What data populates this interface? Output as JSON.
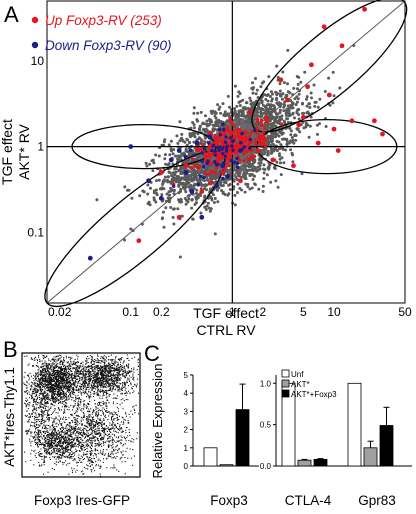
{
  "panel_letters": {
    "a": "A",
    "b": "B",
    "c": "C"
  },
  "colors": {
    "up": "#e8141c",
    "down": "#1a1e8c",
    "background_points": "#5a5a5a",
    "unf_bar": "#ffffff",
    "akt_bar": "#a0a0a0",
    "akt_foxp3_bar": "#000000"
  },
  "chart_data": [
    {
      "type": "scatter",
      "panel": "A",
      "xlabel": [
        "TGF effect",
        "CTRL RV"
      ],
      "ylabel": [
        "TGF effect",
        "AKT* RV"
      ],
      "xscale": "log",
      "yscale": "log",
      "xlim": [
        0.015,
        50
      ],
      "ylim": [
        0.015,
        50
      ],
      "xticks": [
        "0.02",
        "0.1",
        "0.2",
        "1",
        "2",
        "5",
        "10",
        "50"
      ],
      "xtick_values": [
        0.02,
        0.1,
        0.2,
        1,
        2,
        5,
        10,
        50
      ],
      "yticks": [
        "10",
        "1",
        "0.1"
      ],
      "ytick_values": [
        10,
        1,
        0.1
      ],
      "legend": [
        {
          "label": "Up Foxp3-RV (253)",
          "color": "#e8141c"
        },
        {
          "label": "Down Foxp3-RV (90)",
          "color": "#1a1e8c"
        }
      ],
      "legend_position": "top-left",
      "series": [
        {
          "name": "Up Foxp3-RV (253)",
          "color": "#e8141c",
          "points": [
            [
              8,
              25
            ],
            [
              20,
              40
            ],
            [
              6,
              9
            ],
            [
              12,
              15
            ],
            [
              3,
              6
            ],
            [
              25,
              2
            ],
            [
              10,
              1.6
            ],
            [
              4,
              0.6
            ],
            [
              5,
              2.2
            ],
            [
              2,
              1.3
            ],
            [
              0.3,
              0.15
            ],
            [
              0.12,
              0.08
            ],
            [
              30,
              1.4
            ],
            [
              15,
              2
            ],
            [
              0.5,
              0.3
            ],
            [
              2.5,
              0.7
            ],
            [
              7,
              1.1
            ],
            [
              1.5,
              2.5
            ],
            [
              3.5,
              3.5
            ],
            [
              0.8,
              0.5
            ],
            [
              9,
              4
            ],
            [
              4.5,
              1.8
            ],
            [
              1.8,
              0.9
            ],
            [
              0.6,
              1.4
            ],
            [
              0.2,
              0.5
            ],
            [
              2.2,
              2
            ],
            [
              5.5,
              5
            ],
            [
              11,
              0.9
            ],
            [
              0.35,
              0.6
            ],
            [
              1.2,
              0.4
            ]
          ]
        },
        {
          "name": "Down Foxp3-RV (90)",
          "color": "#1a1e8c",
          "points": [
            [
              0.04,
              0.05
            ],
            [
              0.3,
              0.9
            ],
            [
              0.1,
              1.0
            ],
            [
              0.4,
              0.3
            ],
            [
              0.2,
              0.25
            ],
            [
              0.8,
              0.6
            ],
            [
              0.5,
              0.15
            ],
            [
              0.15,
              0.4
            ],
            [
              0.6,
              1.3
            ],
            [
              0.25,
              0.7
            ],
            [
              1.2,
              0.9
            ],
            [
              0.35,
              0.5
            ],
            [
              0.7,
              0.35
            ],
            [
              0.45,
              1.1
            ],
            [
              0.9,
              0.45
            ]
          ]
        }
      ],
      "background_points": {
        "description": "all other genes",
        "color": "#5a5a5a"
      },
      "annotations": [
        "diagonal line y=x",
        "horizontal line y=1",
        "vertical line x=1",
        "four ellipses on the diagonal and horizontal axes"
      ]
    },
    {
      "type": "scatter",
      "panel": "B",
      "subtype": "flow-cytometry density plot",
      "xlabel": "Foxp3 Ires-GFP",
      "ylabel": "AKT*Ires-Thy1.1"
    },
    {
      "type": "bar",
      "panel": "C",
      "ylabel": "Relative Expression",
      "legend": [
        "Unf",
        "AKT*",
        "AKT*+Foxp3"
      ],
      "legend_position": "top-left",
      "subcharts": [
        {
          "categories": [
            "Foxp3"
          ],
          "ylim": [
            0,
            5
          ],
          "yticks": [
            "0",
            "1",
            "2",
            "3",
            "4",
            "5"
          ],
          "ytick_values": [
            0,
            1,
            2,
            3,
            4,
            5
          ],
          "series": [
            {
              "name": "Unf",
              "values": [
                1.0
              ],
              "error": [
                0
              ]
            },
            {
              "name": "AKT*",
              "values": [
                0.07
              ],
              "error": [
                0
              ]
            },
            {
              "name": "AKT*+Foxp3",
              "values": [
                3.1
              ],
              "error": [
                1.4
              ]
            }
          ]
        },
        {
          "categories": [
            "CTLA-4",
            "Gpr83"
          ],
          "ylim": [
            0,
            1.1
          ],
          "yticks": [
            "0.0",
            "0.5",
            "1.0"
          ],
          "ytick_values": [
            0,
            0.5,
            1.0
          ],
          "series": [
            {
              "name": "Unf",
              "values": [
                1.0,
                1.0
              ],
              "error": [
                0,
                0
              ]
            },
            {
              "name": "AKT*",
              "values": [
                0.07,
                0.22
              ],
              "error": [
                0.01,
                0.08
              ]
            },
            {
              "name": "AKT*+Foxp3",
              "values": [
                0.08,
                0.49
              ],
              "error": [
                0.01,
                0.22
              ]
            }
          ]
        }
      ]
    }
  ]
}
